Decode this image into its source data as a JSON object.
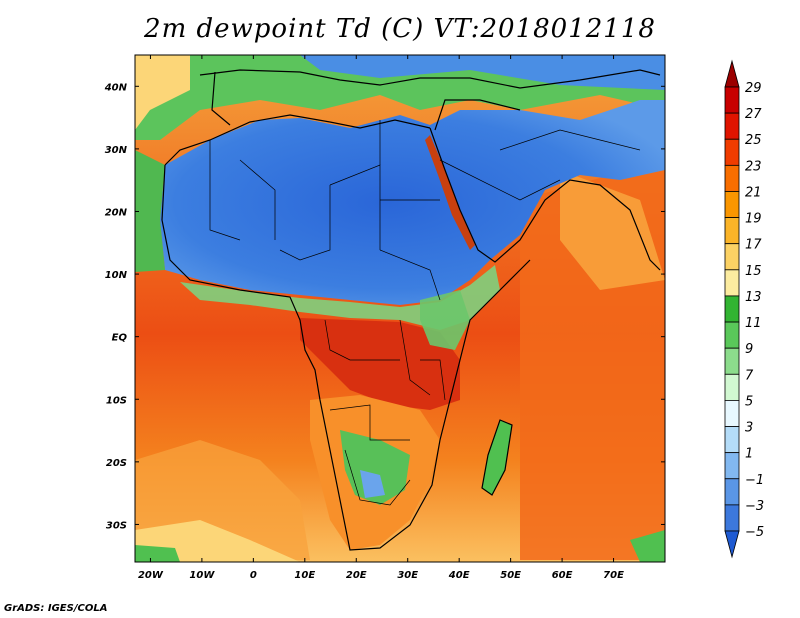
{
  "title": "2m dewpoint Td (C) VT:2018012118",
  "credit": "GrADS: IGES/COLA",
  "map": {
    "lon_range": [
      -23,
      80
    ],
    "lat_range": [
      -36,
      45
    ],
    "lon_ticks": [
      {
        "value": -20,
        "label": "20W"
      },
      {
        "value": -10,
        "label": "10W"
      },
      {
        "value": 0,
        "label": "0"
      },
      {
        "value": 10,
        "label": "10E"
      },
      {
        "value": 20,
        "label": "20E"
      },
      {
        "value": 30,
        "label": "30E"
      },
      {
        "value": 40,
        "label": "40E"
      },
      {
        "value": 50,
        "label": "50E"
      },
      {
        "value": 60,
        "label": "60E"
      },
      {
        "value": 70,
        "label": "70E"
      }
    ],
    "lat_ticks": [
      {
        "value": 40,
        "label": "40N"
      },
      {
        "value": 30,
        "label": "30N"
      },
      {
        "value": 20,
        "label": "20N"
      },
      {
        "value": 10,
        "label": "10N"
      },
      {
        "value": 0,
        "label": "EQ"
      },
      {
        "value": -10,
        "label": "10S"
      },
      {
        "value": -20,
        "label": "20S"
      },
      {
        "value": -30,
        "label": "30S"
      }
    ]
  },
  "colorbar": {
    "levels": [
      "29",
      "27",
      "25",
      "23",
      "21",
      "19",
      "17",
      "15",
      "13",
      "11",
      "9",
      "7",
      "5",
      "3",
      "1",
      "−1",
      "−3",
      "−5"
    ],
    "colors": [
      "#9b0000",
      "#c80000",
      "#e01400",
      "#f03c00",
      "#f86e00",
      "#fa9600",
      "#fbb428",
      "#fcd264",
      "#fceca0",
      "#32b432",
      "#5ac85a",
      "#8cdc8c",
      "#d2f8d2",
      "#e8f8ff",
      "#b4dcf8",
      "#82b8f0",
      "#5a96e6",
      "#3c78dc",
      "#1e5ad2"
    ],
    "top_color": "#9b0000",
    "bottom_color": "#1e5ad2"
  },
  "colors": {
    "ocean_warm": "#f05a14",
    "ocean_orange": "#fa9632",
    "land_blue": "#3c78dc",
    "land_green": "#50c050",
    "coast": "#000000"
  }
}
